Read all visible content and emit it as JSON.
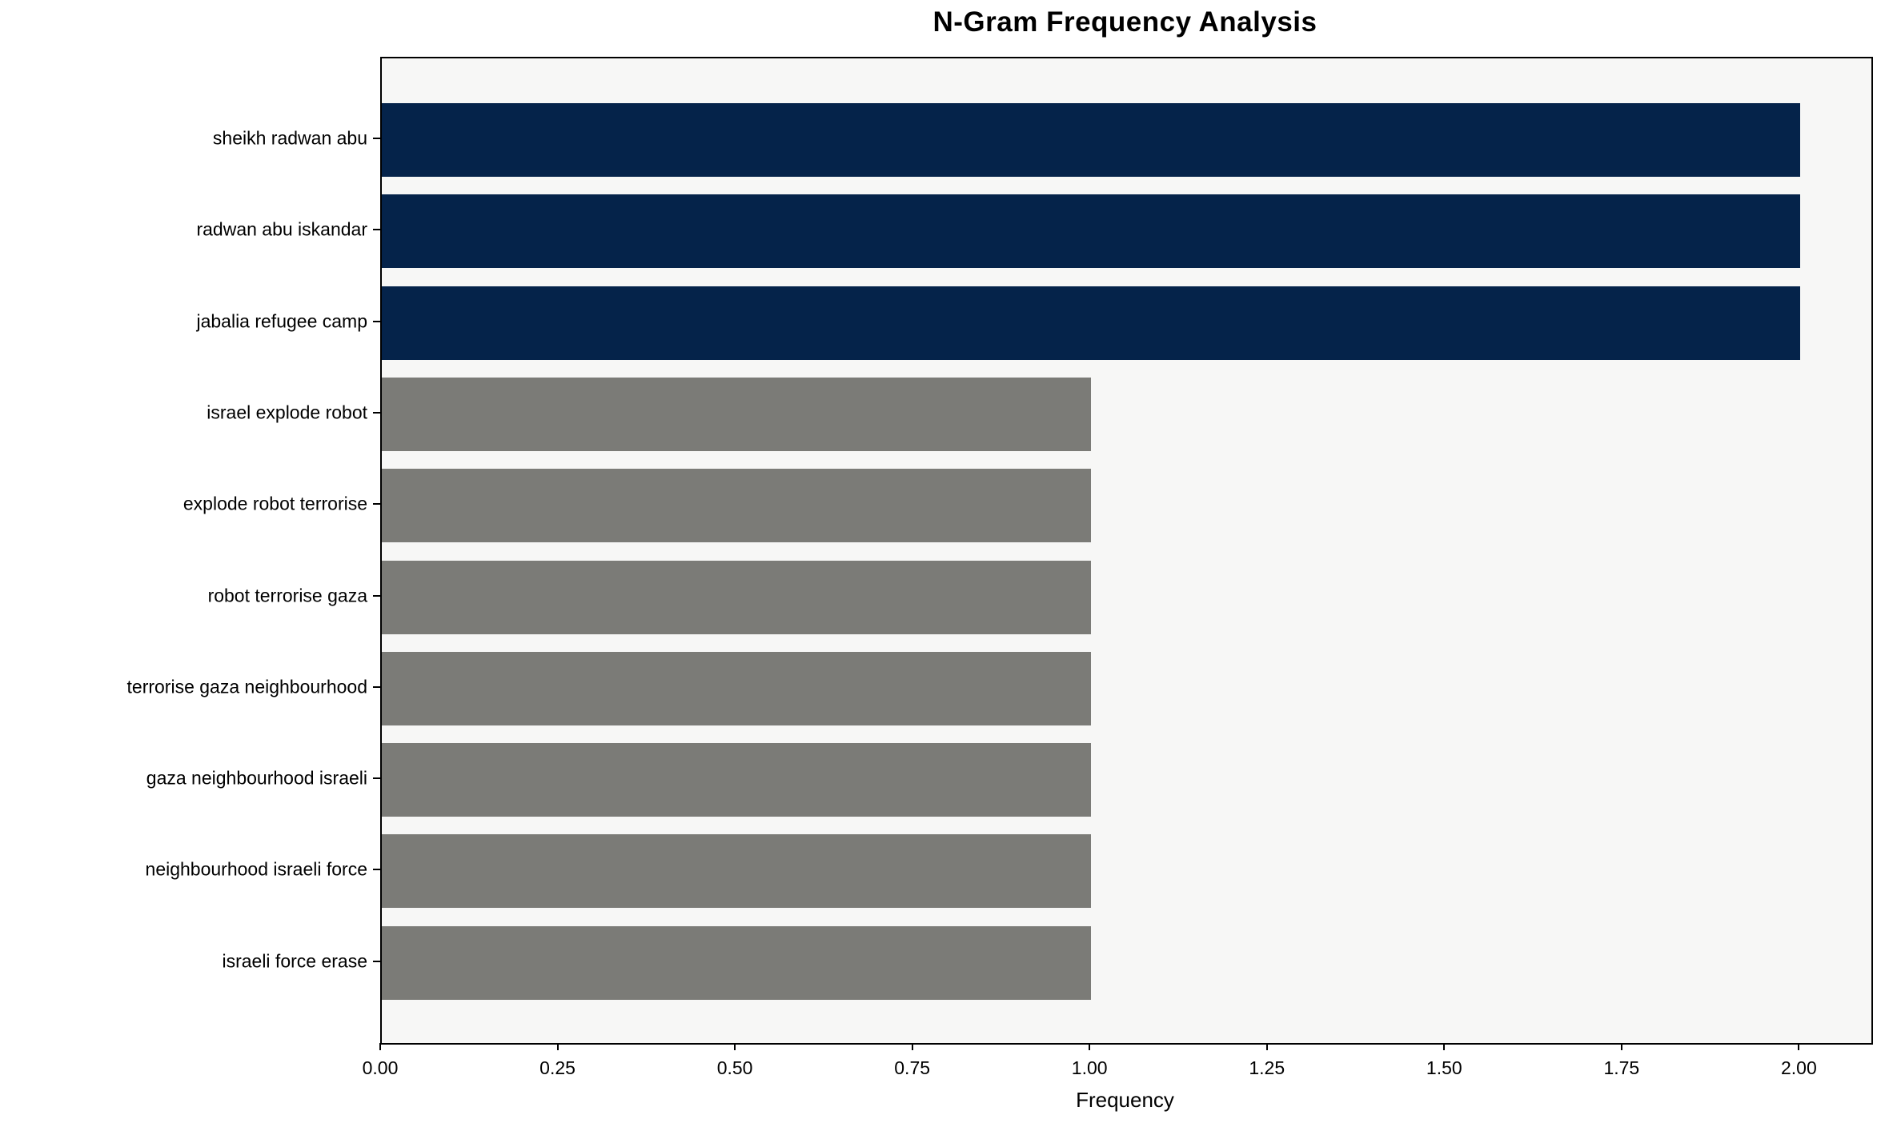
{
  "chart_data": {
    "type": "bar",
    "orientation": "horizontal",
    "title": "N-Gram Frequency Analysis",
    "xlabel": "Frequency",
    "ylabel": "",
    "categories": [
      "sheikh radwan abu",
      "radwan abu iskandar",
      "jabalia refugee camp",
      "israel explode robot",
      "explode robot terrorise",
      "robot terrorise gaza",
      "terrorise gaza neighbourhood",
      "gaza neighbourhood israeli",
      "neighbourhood israeli force",
      "israeli force erase"
    ],
    "values": [
      2,
      2,
      2,
      1,
      1,
      1,
      1,
      1,
      1,
      1
    ],
    "bar_colors": [
      "#05234a",
      "#05234a",
      "#05234a",
      "#7b7b77",
      "#7b7b77",
      "#7b7b77",
      "#7b7b77",
      "#7b7b77",
      "#7b7b77",
      "#7b7b77"
    ],
    "xlim": [
      0,
      2.1
    ],
    "xticks": [
      0.0,
      0.25,
      0.5,
      0.75,
      1.0,
      1.25,
      1.5,
      1.75,
      2.0
    ],
    "xtick_labels": [
      "0.00",
      "0.25",
      "0.50",
      "0.75",
      "1.00",
      "1.25",
      "1.50",
      "1.75",
      "2.00"
    ],
    "grid": false,
    "legend": null,
    "colors": {
      "highlight_bar": "#05234a",
      "regular_bar": "#7b7b77",
      "plot_background": "#f7f7f6",
      "figure_background": "#ffffff",
      "axis": "#000000",
      "text": "#000000"
    }
  }
}
